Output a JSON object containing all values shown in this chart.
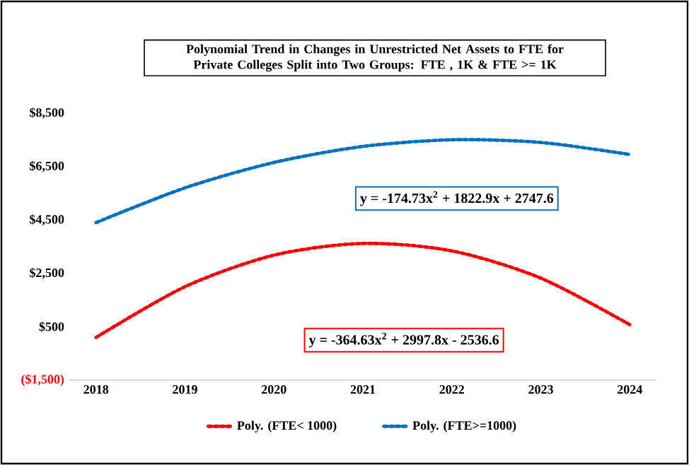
{
  "chart_data": {
    "type": "line",
    "title": "Polynomial Trend in Changes in Unrestricted Net Assets to FTE for Private Colleges Split into Two Groups: FTE , 1K & FTE >= 1K",
    "x": [
      2018,
      2019,
      2020,
      2021,
      2022,
      2023,
      2024
    ],
    "series": [
      {
        "name": "Poly. (FTE< 1000)",
        "color": "#ff0000",
        "values": [
          100,
          2000,
          3180,
          3620,
          3340,
          2320,
          580
        ]
      },
      {
        "name": "Poly. (FTE>=1000)",
        "color": "#0070c0",
        "values": [
          4400,
          5700,
          6650,
          7250,
          7500,
          7400,
          6950
        ]
      }
    ],
    "xlim": [
      2017.7,
      2024.3
    ],
    "ylim": [
      -1500,
      8500
    ],
    "xticks": [
      2018,
      2019,
      2020,
      2021,
      2022,
      2023,
      2024
    ],
    "yticks": [
      {
        "value": -1500,
        "label": "($1,500)"
      },
      {
        "value": 500,
        "label": "$500"
      },
      {
        "value": 2500,
        "label": "$2,500"
      },
      {
        "value": 4500,
        "label": "$4,500"
      },
      {
        "value": 6500,
        "label": "$6,500"
      },
      {
        "value": 8500,
        "label": "$8,500"
      }
    ],
    "annotations": [
      "y = -364.63x$^{2}$ + 2997.8x - 2536.6",
      "y = -174.73x$^{2}$ + 1822.9x + 2747.6"
    ],
    "legend": "bottom",
    "marker": "none",
    "line_style": "dotted",
    "grid": false
  }
}
